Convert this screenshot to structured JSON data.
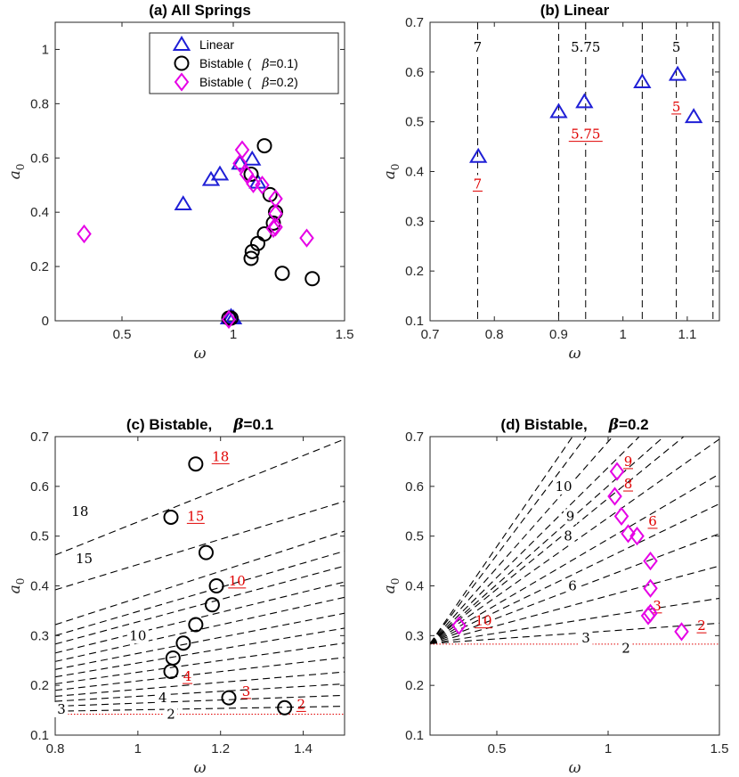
{
  "chart_data": [
    {
      "id": "a",
      "type": "scatter",
      "title": "(a) All Springs",
      "xlabel": "ω",
      "ylabel": "a",
      "ylabel_sub": "0",
      "xlim": [
        0.2,
        1.5
      ],
      "ylim": [
        0,
        1.1
      ],
      "xticks": [
        0.5,
        1,
        1.5
      ],
      "xtick_labels": [
        "0.5",
        "1",
        "1.5"
      ],
      "yticks": [
        0,
        0.2,
        0.4,
        0.6,
        0.8,
        1
      ],
      "ytick_labels": [
        "0",
        "0.2",
        "0.4",
        "0.6",
        "0.8",
        "1"
      ],
      "grid": false,
      "legend_position": "top-right",
      "series": [
        {
          "name": "Linear",
          "marker": "triangle",
          "color": "#1f1fd6",
          "x": [
            0.775,
            0.9,
            0.94,
            1.03,
            1.085,
            1.11,
            0.99,
            0.98,
            1.0
          ],
          "y": [
            0.43,
            0.52,
            0.54,
            0.58,
            0.595,
            0.51,
            0.015,
            0.01,
            0.01
          ]
        },
        {
          "name": "Bistable (",
          "name_greek": "β",
          "name_rest": "=0.1)",
          "marker": "circle",
          "color": "#000000",
          "x": [
            1.14,
            1.08,
            1.165,
            1.19,
            1.18,
            1.14,
            1.11,
            1.085,
            1.08,
            1.22,
            1.355,
            0.98,
            0.99
          ],
          "y": [
            0.645,
            0.54,
            0.465,
            0.4,
            0.36,
            0.32,
            0.285,
            0.255,
            0.23,
            0.175,
            0.155,
            0.01,
            0.01
          ]
        },
        {
          "name": "Bistable (",
          "name_greek": "β",
          "name_rest": "=0.2)",
          "marker": "diamond",
          "color": "#e600e6",
          "x": [
            0.33,
            1.04,
            1.03,
            1.06,
            1.09,
            1.13,
            1.19,
            1.19,
            1.19,
            1.18,
            1.33,
            0.98
          ],
          "y": [
            0.32,
            0.63,
            0.58,
            0.54,
            0.505,
            0.5,
            0.45,
            0.395,
            0.345,
            0.34,
            0.305,
            0.005
          ]
        }
      ]
    },
    {
      "id": "b",
      "type": "scatter",
      "title": "(b) Linear",
      "xlabel": "ω",
      "ylabel": "a",
      "ylabel_sub": "0",
      "xlim": [
        0.7,
        1.15
      ],
      "ylim": [
        0.1,
        0.7
      ],
      "xticks": [
        0.7,
        0.8,
        0.9,
        1.0,
        1.1
      ],
      "xtick_labels": [
        "0.7",
        "0.8",
        "0.9",
        "1",
        "1.1"
      ],
      "yticks": [
        0.1,
        0.2,
        0.3,
        0.4,
        0.5,
        0.6,
        0.7
      ],
      "ytick_labels": [
        "0.1",
        "0.2",
        "0.3",
        "0.4",
        "0.5",
        "0.6",
        "0.7"
      ],
      "grid": false,
      "series": [
        {
          "marker": "triangle",
          "color": "#1f1fd6",
          "x": [
            0.775,
            0.9,
            0.94,
            1.03,
            1.085,
            1.11
          ],
          "y": [
            0.43,
            0.52,
            0.54,
            0.58,
            0.595,
            0.51
          ]
        }
      ],
      "vlines": [
        0.774,
        0.9,
        0.942,
        1.03,
        1.083,
        1.14
      ],
      "labels_black": [
        {
          "text": "7",
          "x": 0.774,
          "y": 0.65
        },
        {
          "text": "5.75",
          "x": 0.942,
          "y": 0.65
        },
        {
          "text": "5",
          "x": 1.083,
          "y": 0.65
        }
      ],
      "labels_red": [
        {
          "text": "7",
          "x": 0.774,
          "y": 0.375
        },
        {
          "text": "5.75",
          "x": 0.942,
          "y": 0.475
        },
        {
          "text": "5",
          "x": 1.083,
          "y": 0.53
        }
      ]
    },
    {
      "id": "c",
      "type": "scatter",
      "title": "(c) Bistable,",
      "title_greek": "β",
      "title_rest": "=0.1",
      "xlabel": "ω",
      "ylabel": "a",
      "ylabel_sub": "0",
      "xlim": [
        0.8,
        1.5
      ],
      "ylim": [
        0.1,
        0.7
      ],
      "xticks": [
        0.8,
        1.0,
        1.2,
        1.4
      ],
      "xtick_labels": [
        "0.8",
        "1",
        "1.2",
        "1.4"
      ],
      "yticks": [
        0.1,
        0.2,
        0.3,
        0.4,
        0.5,
        0.6,
        0.7
      ],
      "ytick_labels": [
        "0.1",
        "0.2",
        "0.3",
        "0.4",
        "0.5",
        "0.6",
        "0.7"
      ],
      "grid": false,
      "series": [
        {
          "marker": "circle",
          "color": "#000000",
          "x": [
            1.14,
            1.08,
            1.165,
            1.19,
            1.18,
            1.14,
            1.11,
            1.085,
            1.08,
            1.22,
            1.355
          ],
          "y": [
            0.645,
            0.538,
            0.467,
            0.4,
            0.362,
            0.322,
            0.285,
            0.255,
            0.228,
            0.175,
            0.155
          ]
        }
      ],
      "baseline": 0.142,
      "lines": [
        {
          "y0": 0.148,
          "y1": 0.158
        },
        {
          "y0": 0.158,
          "y1": 0.18
        },
        {
          "y0": 0.168,
          "y1": 0.203
        },
        {
          "y0": 0.178,
          "y1": 0.227
        },
        {
          "y0": 0.19,
          "y1": 0.256
        },
        {
          "y0": 0.203,
          "y1": 0.285
        },
        {
          "y0": 0.217,
          "y1": 0.315
        },
        {
          "y0": 0.232,
          "y1": 0.345
        },
        {
          "y0": 0.248,
          "y1": 0.377
        },
        {
          "y0": 0.265,
          "y1": 0.408
        },
        {
          "y0": 0.283,
          "y1": 0.44
        },
        {
          "y0": 0.3,
          "y1": 0.47
        },
        {
          "y0": 0.322,
          "y1": 0.51
        },
        {
          "y0": 0.392,
          "y1": 0.57
        },
        {
          "y0": 0.462,
          "y1": 0.695
        }
      ],
      "labels_black": [
        {
          "text": "2",
          "x": 1.08,
          "y": 0.142
        },
        {
          "text": "3",
          "x": 0.815,
          "y": 0.152
        },
        {
          "text": "4",
          "x": 1.06,
          "y": 0.175
        },
        {
          "text": "10",
          "x": 1.0,
          "y": 0.3
        },
        {
          "text": "15",
          "x": 0.87,
          "y": 0.455
        },
        {
          "text": "18",
          "x": 0.86,
          "y": 0.55
        }
      ],
      "labels_red": [
        {
          "text": "2",
          "x": 1.395,
          "y": 0.162
        },
        {
          "text": "3",
          "x": 1.262,
          "y": 0.188
        },
        {
          "text": "4",
          "x": 1.12,
          "y": 0.218
        },
        {
          "text": "10",
          "x": 1.24,
          "y": 0.41
        },
        {
          "text": "15",
          "x": 1.14,
          "y": 0.54
        },
        {
          "text": "18",
          "x": 1.2,
          "y": 0.66
        }
      ]
    },
    {
      "id": "d",
      "type": "scatter",
      "title": "(d) Bistable,",
      "title_greek": "β",
      "title_rest": "=0.2",
      "xlabel": "ω",
      "ylabel": "a",
      "ylabel_sub": "0",
      "xlim": [
        0.2,
        1.5
      ],
      "ylim": [
        0.1,
        0.7
      ],
      "xticks": [
        0.5,
        1.0,
        1.5
      ],
      "xtick_labels": [
        "0.5",
        "1",
        "1.5"
      ],
      "yticks": [
        0.1,
        0.2,
        0.3,
        0.4,
        0.5,
        0.6,
        0.7
      ],
      "ytick_labels": [
        "0.1",
        "0.2",
        "0.3",
        "0.4",
        "0.5",
        "0.6",
        "0.7"
      ],
      "grid": false,
      "series": [
        {
          "marker": "diamond",
          "color": "#e600e6",
          "x": [
            0.33,
            1.04,
            1.03,
            1.06,
            1.09,
            1.13,
            1.19,
            1.19,
            1.19,
            1.18,
            1.33
          ],
          "y": [
            0.32,
            0.63,
            0.58,
            0.54,
            0.505,
            0.5,
            0.45,
            0.395,
            0.345,
            0.34,
            0.308
          ]
        }
      ],
      "baseline": 0.283,
      "lines": [
        {
          "x0": 0.2,
          "y0": 0.284,
          "x1": 1.5,
          "y1": 0.325
        },
        {
          "x0": 0.2,
          "y0": 0.284,
          "x1": 1.5,
          "y1": 0.375
        },
        {
          "x0": 0.2,
          "y0": 0.284,
          "x1": 1.5,
          "y1": 0.44
        },
        {
          "x0": 0.2,
          "y0": 0.284,
          "x1": 1.5,
          "y1": 0.505
        },
        {
          "x0": 0.2,
          "y0": 0.284,
          "x1": 1.5,
          "y1": 0.565
        },
        {
          "x0": 0.2,
          "y0": 0.284,
          "x1": 1.5,
          "y1": 0.625
        },
        {
          "x0": 0.2,
          "y0": 0.284,
          "x1": 1.5,
          "y1": 0.695
        },
        {
          "x0": 0.2,
          "y0": 0.284,
          "x1": 1.34,
          "y1": 0.7
        },
        {
          "x0": 0.2,
          "y0": 0.284,
          "x1": 1.25,
          "y1": 0.7
        },
        {
          "x0": 0.2,
          "y0": 0.284,
          "x1": 1.14,
          "y1": 0.7
        },
        {
          "x0": 0.2,
          "y0": 0.284,
          "x1": 1.02,
          "y1": 0.7
        },
        {
          "x0": 0.2,
          "y0": 0.284,
          "x1": 0.9,
          "y1": 0.7
        },
        {
          "x0": 0.2,
          "y0": 0.284,
          "x1": 0.84,
          "y1": 0.7
        }
      ],
      "labels_black": [
        {
          "text": "2",
          "x": 1.08,
          "y": 0.275
        },
        {
          "text": "3",
          "x": 0.9,
          "y": 0.295
        },
        {
          "text": "6",
          "x": 0.84,
          "y": 0.4
        },
        {
          "text": "8",
          "x": 0.82,
          "y": 0.5
        },
        {
          "text": "9",
          "x": 0.83,
          "y": 0.54
        },
        {
          "text": "10",
          "x": 0.8,
          "y": 0.6
        }
      ],
      "labels_red": [
        {
          "text": "2",
          "x": 1.42,
          "y": 0.32
        },
        {
          "text": "3",
          "x": 1.22,
          "y": 0.36
        },
        {
          "text": "6",
          "x": 1.2,
          "y": 0.53
        },
        {
          "text": "8",
          "x": 1.09,
          "y": 0.605
        },
        {
          "text": "9",
          "x": 1.09,
          "y": 0.65
        },
        {
          "text": "10",
          "x": 0.44,
          "y": 0.33
        }
      ]
    }
  ]
}
